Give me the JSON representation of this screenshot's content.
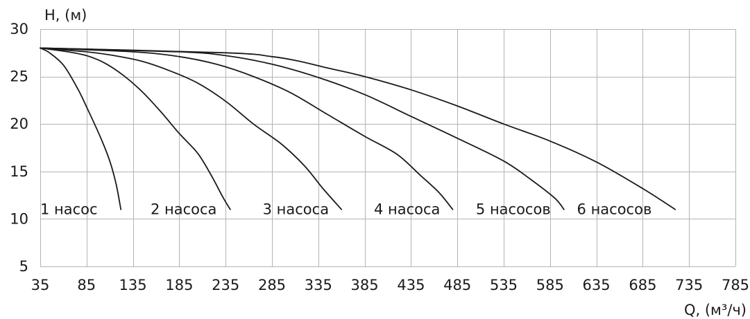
{
  "chart_data": {
    "type": "line",
    "xlabel": "Q, (м³/ч)",
    "ylabel": "H, (м)",
    "xlim": [
      35,
      785
    ],
    "ylim": [
      5,
      30
    ],
    "xticks": [
      "35",
      "85",
      "135",
      "185",
      "235",
      "285",
      "335",
      "385",
      "435",
      "485",
      "535",
      "585",
      "635",
      "685",
      "735",
      "785"
    ],
    "yticks": [
      "5",
      "10",
      "15",
      "20",
      "25",
      "30"
    ],
    "grid": true,
    "series": [
      {
        "name": "1 насос",
        "label_at": [
          35,
          11
        ],
        "points": [
          [
            35,
            28
          ],
          [
            45,
            27.5
          ],
          [
            60,
            26.2
          ],
          [
            75,
            23.8
          ],
          [
            85,
            21.8
          ],
          [
            100,
            18.6
          ],
          [
            110,
            16.1
          ],
          [
            117,
            13.6
          ],
          [
            122,
            11
          ]
        ]
      },
      {
        "name": "2 насоса",
        "label_at": [
          154,
          11
        ],
        "points": [
          [
            35,
            28
          ],
          [
            65,
            27.6
          ],
          [
            85,
            27.2
          ],
          [
            105,
            26.4
          ],
          [
            125,
            25.1
          ],
          [
            145,
            23.4
          ],
          [
            165,
            21.3
          ],
          [
            185,
            19
          ],
          [
            205,
            16.9
          ],
          [
            220,
            14.5
          ],
          [
            232,
            12.3
          ],
          [
            240,
            11
          ]
        ]
      },
      {
        "name": "3 насоса",
        "label_at": [
          275,
          11
        ],
        "points": [
          [
            35,
            28
          ],
          [
            85,
            27.6
          ],
          [
            115,
            27.2
          ],
          [
            145,
            26.6
          ],
          [
            175,
            25.6
          ],
          [
            205,
            24.3
          ],
          [
            235,
            22.4
          ],
          [
            265,
            20
          ],
          [
            295,
            17.9
          ],
          [
            320,
            15.6
          ],
          [
            340,
            13.2
          ],
          [
            360,
            11
          ]
        ]
      },
      {
        "name": "4 насоса",
        "label_at": [
          395,
          11
        ],
        "points": [
          [
            35,
            28
          ],
          [
            135,
            27.6
          ],
          [
            185,
            27.1
          ],
          [
            225,
            26.3
          ],
          [
            265,
            25
          ],
          [
            305,
            23.3
          ],
          [
            345,
            21
          ],
          [
            385,
            18.7
          ],
          [
            420,
            16.8
          ],
          [
            445,
            14.6
          ],
          [
            465,
            12.8
          ],
          [
            480,
            11
          ]
        ]
      },
      {
        "name": "5 насосов",
        "label_at": [
          505,
          11
        ],
        "points": [
          [
            35,
            28
          ],
          [
            185,
            27.6
          ],
          [
            235,
            27.2
          ],
          [
            285,
            26.3
          ],
          [
            335,
            24.9
          ],
          [
            385,
            23.1
          ],
          [
            435,
            20.8
          ],
          [
            485,
            18.5
          ],
          [
            535,
            16.1
          ],
          [
            565,
            14.1
          ],
          [
            590,
            12.2
          ],
          [
            600,
            11
          ]
        ]
      },
      {
        "name": "6 насосов",
        "label_at": [
          614,
          11
        ],
        "points": [
          [
            35,
            28
          ],
          [
            235,
            27.5
          ],
          [
            285,
            27.1
          ],
          [
            315,
            26.6
          ],
          [
            345,
            25.9
          ],
          [
            385,
            25
          ],
          [
            435,
            23.6
          ],
          [
            485,
            21.9
          ],
          [
            535,
            20
          ],
          [
            585,
            18.2
          ],
          [
            635,
            16
          ],
          [
            685,
            13.2
          ],
          [
            720,
            11
          ]
        ]
      }
    ]
  }
}
